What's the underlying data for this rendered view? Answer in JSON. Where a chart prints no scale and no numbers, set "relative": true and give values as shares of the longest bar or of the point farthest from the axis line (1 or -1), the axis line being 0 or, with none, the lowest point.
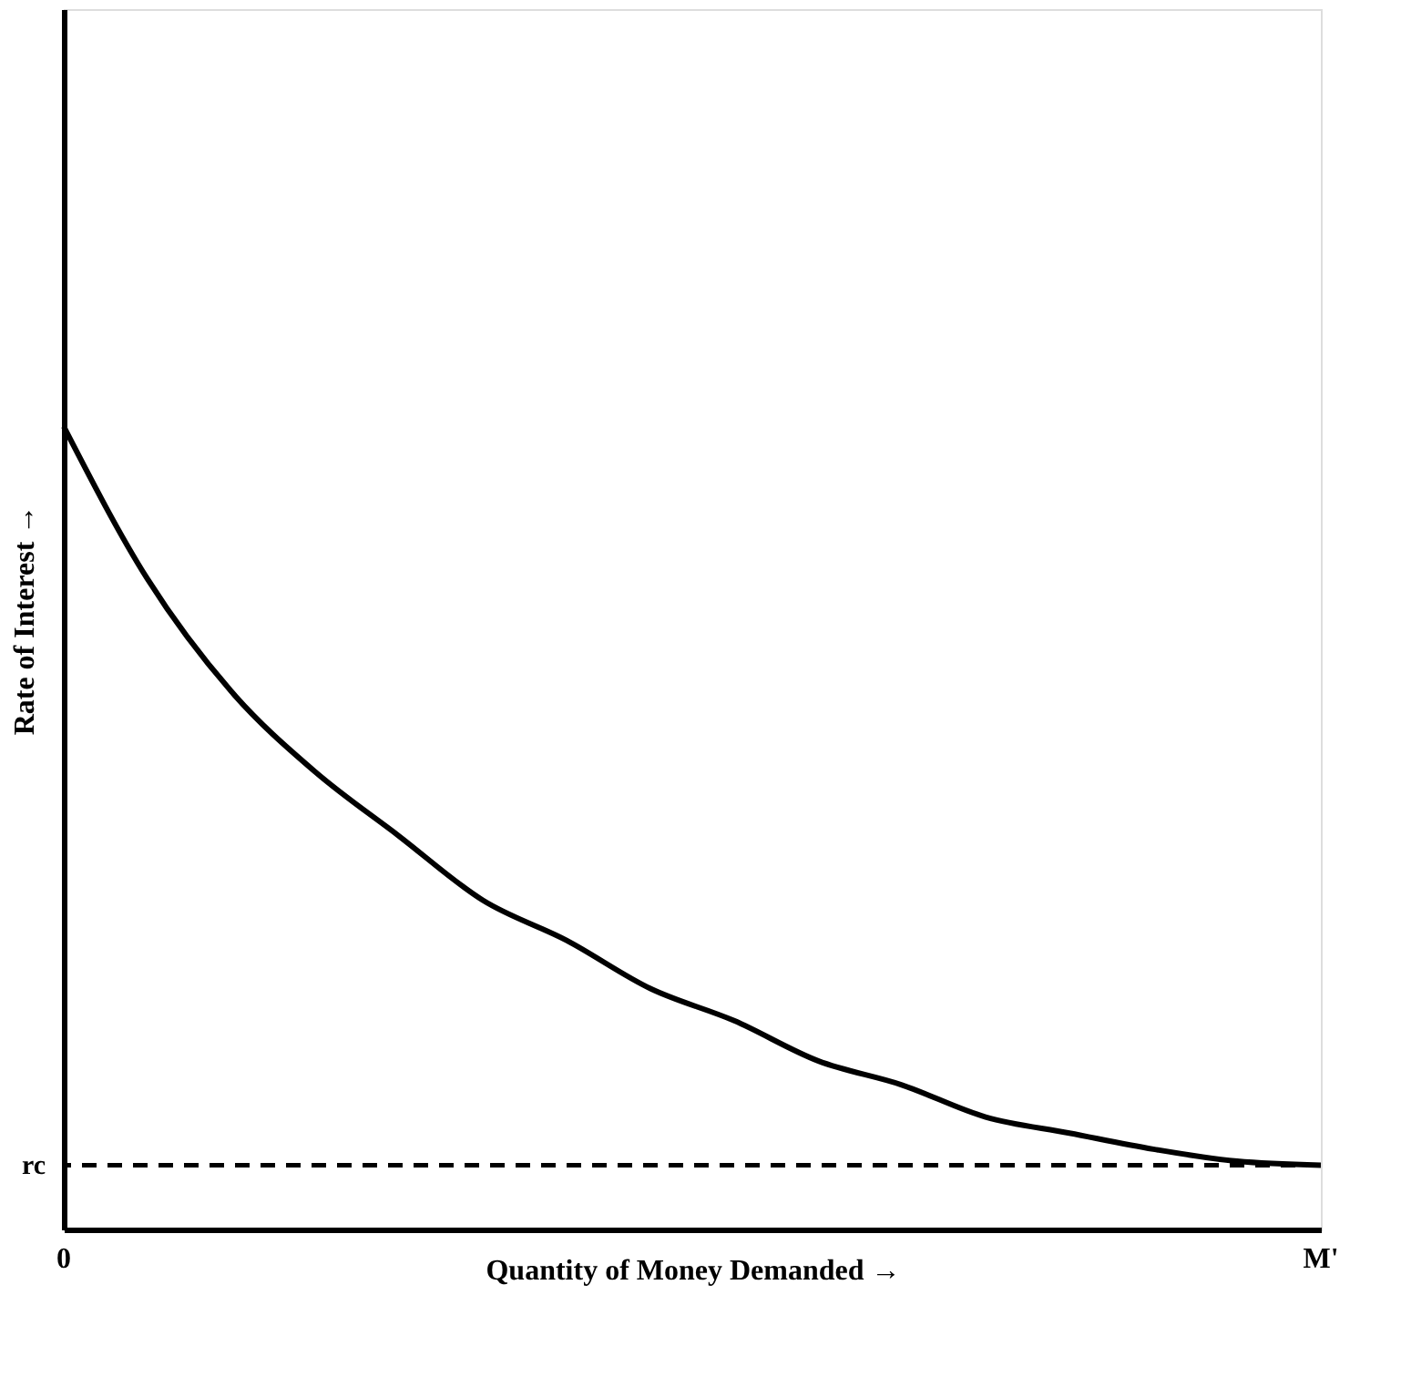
{
  "chart_data": {
    "type": "line",
    "relative": true,
    "xlabel": "Quantity of Money Demanded →",
    "ylabel": "Rate of Interest →",
    "categories": [
      null,
      null,
      null,
      null,
      null,
      null,
      null,
      null,
      null,
      null,
      null,
      null,
      null,
      null,
      null,
      null
    ],
    "series": [
      {
        "color": "#000000",
        "values": [
          1.0,
          0.81,
          0.67,
          0.57,
          0.49,
          0.41,
          0.36,
          0.3,
          0.26,
          0.21,
          0.18,
          0.14,
          0.12,
          0.1,
          0.085,
          0.08
        ]
      }
    ],
    "ref_lines": [
      {
        "axis": "y",
        "value": 0.08,
        "label": "rc",
        "line_style": "dashed",
        "color": "#000000"
      }
    ],
    "annotations": [
      "0",
      "M'"
    ],
    "grid": false,
    "marker": "none",
    "line_style": "solid"
  }
}
